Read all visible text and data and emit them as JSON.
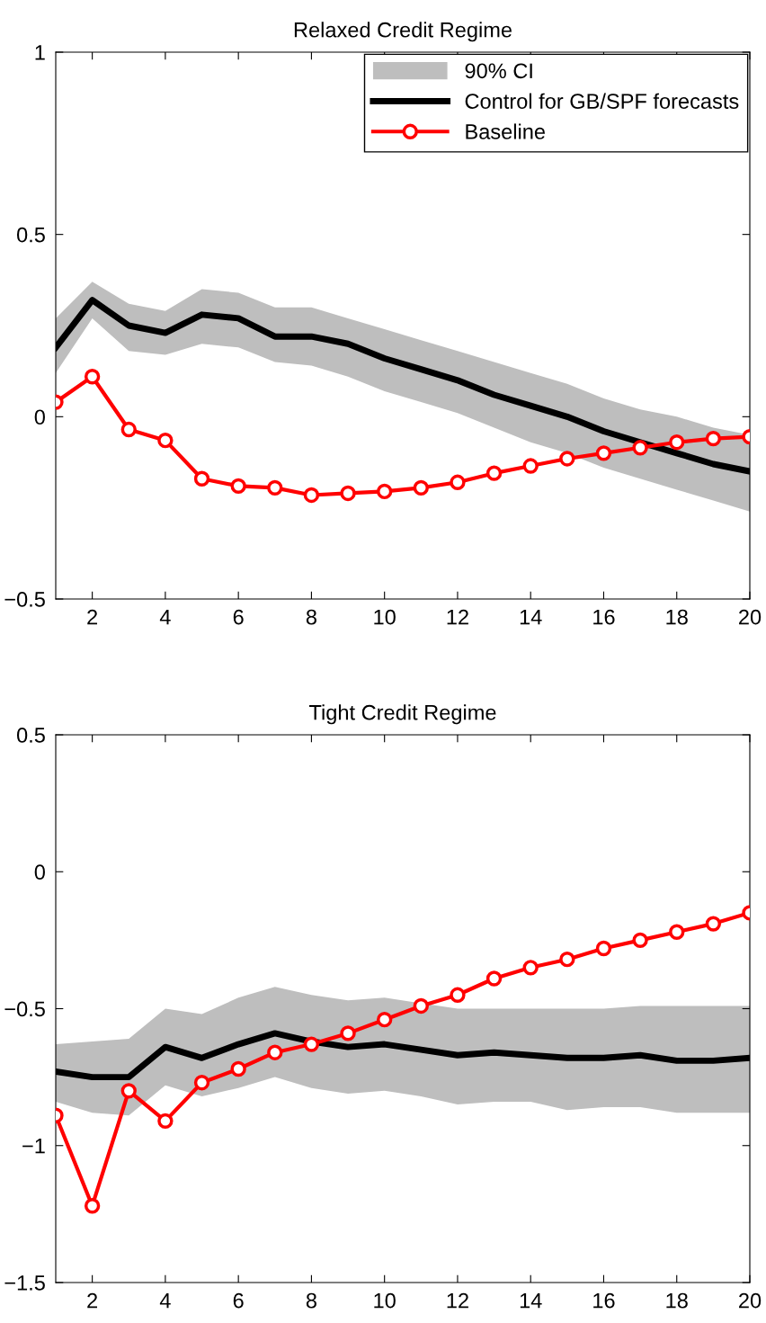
{
  "chart_data": [
    {
      "type": "line",
      "title": "Relaxed Credit Regime",
      "annotations": [
        "90% CI"
      ],
      "x": [
        1,
        2,
        3,
        4,
        5,
        6,
        7,
        8,
        9,
        10,
        11,
        12,
        13,
        14,
        15,
        16,
        17,
        18,
        19,
        20
      ],
      "xlim": [
        1,
        20
      ],
      "xticks": [
        2,
        4,
        6,
        8,
        10,
        12,
        14,
        16,
        18,
        20
      ],
      "ylim": [
        -0.5,
        1
      ],
      "yticks": [
        {
          "value": -0.5,
          "label": "−0.5"
        },
        0,
        0.5,
        1
      ],
      "grid": false,
      "legend": "top right",
      "series": [
        {
          "name": "Control for GB/SPF forecasts",
          "color": "#000000",
          "marker": "none",
          "values": [
            0.19,
            0.32,
            0.25,
            0.23,
            0.28,
            0.27,
            0.22,
            0.22,
            0.2,
            0.16,
            0.13,
            0.1,
            0.06,
            0.03,
            0.0,
            -0.04,
            -0.07,
            -0.1,
            -0.13,
            -0.15
          ],
          "lower": [
            0.12,
            0.27,
            0.18,
            0.17,
            0.2,
            0.19,
            0.15,
            0.14,
            0.11,
            0.07,
            0.04,
            0.01,
            -0.03,
            -0.07,
            -0.1,
            -0.14,
            -0.17,
            -0.2,
            -0.23,
            -0.26
          ],
          "upper": [
            0.27,
            0.37,
            0.31,
            0.29,
            0.35,
            0.34,
            0.3,
            0.3,
            0.27,
            0.24,
            0.21,
            0.18,
            0.15,
            0.12,
            0.09,
            0.05,
            0.02,
            0.0,
            -0.03,
            -0.05
          ]
        },
        {
          "name": "Baseline",
          "color": "#ff0000",
          "marker": "circle",
          "values": [
            0.04,
            0.11,
            -0.035,
            -0.065,
            -0.17,
            -0.19,
            -0.195,
            -0.215,
            -0.21,
            -0.205,
            -0.195,
            -0.18,
            -0.155,
            -0.135,
            -0.115,
            -0.1,
            -0.085,
            -0.07,
            -0.06,
            -0.055
          ]
        }
      ]
    },
    {
      "type": "line",
      "title": "Tight Credit Regime",
      "x": [
        1,
        2,
        3,
        4,
        5,
        6,
        7,
        8,
        9,
        10,
        11,
        12,
        13,
        14,
        15,
        16,
        17,
        18,
        19,
        20
      ],
      "xlim": [
        1,
        20
      ],
      "xticks": [
        2,
        4,
        6,
        8,
        10,
        12,
        14,
        16,
        18,
        20
      ],
      "ylim": [
        -1.5,
        0.5
      ],
      "yticks": [
        {
          "value": -1.5,
          "label": "−1.5"
        },
        {
          "value": -1,
          "label": "−1"
        },
        {
          "value": -0.5,
          "label": "−0.5"
        },
        0,
        0.5
      ],
      "grid": false,
      "series": [
        {
          "color": "#000000",
          "marker": "none",
          "values": [
            -0.73,
            -0.75,
            -0.75,
            -0.64,
            -0.68,
            -0.63,
            -0.59,
            -0.62,
            -0.64,
            -0.63,
            -0.65,
            -0.67,
            -0.66,
            -0.67,
            -0.68,
            -0.68,
            -0.67,
            -0.69,
            -0.69,
            -0.68
          ],
          "lower": [
            -0.84,
            -0.88,
            -0.89,
            -0.78,
            -0.82,
            -0.79,
            -0.75,
            -0.79,
            -0.81,
            -0.8,
            -0.82,
            -0.85,
            -0.84,
            -0.84,
            -0.87,
            -0.86,
            -0.86,
            -0.88,
            -0.88,
            -0.88
          ],
          "upper": [
            -0.63,
            -0.62,
            -0.61,
            -0.5,
            -0.52,
            -0.46,
            -0.42,
            -0.45,
            -0.47,
            -0.46,
            -0.48,
            -0.5,
            -0.5,
            -0.5,
            -0.5,
            -0.5,
            -0.49,
            -0.49,
            -0.49,
            -0.49
          ]
        },
        {
          "color": "#ff0000",
          "marker": "circle",
          "values": [
            -0.89,
            -1.22,
            -0.8,
            -0.91,
            -0.77,
            -0.72,
            -0.66,
            -0.63,
            -0.59,
            -0.54,
            -0.49,
            -0.45,
            -0.39,
            -0.35,
            -0.32,
            -0.28,
            -0.25,
            -0.22,
            -0.19,
            -0.15
          ]
        }
      ]
    }
  ]
}
